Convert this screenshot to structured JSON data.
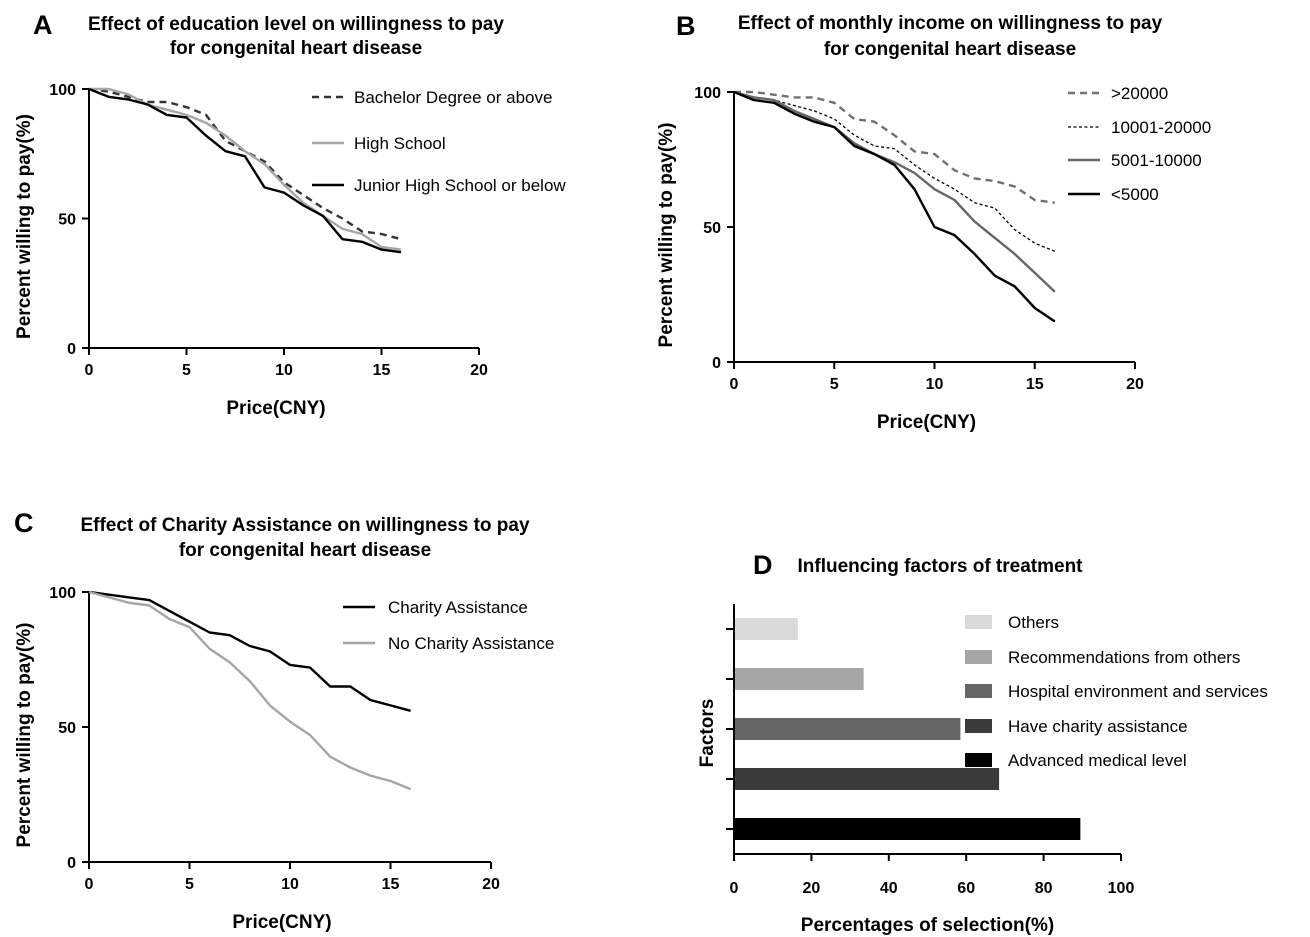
{
  "chart_data": [
    {
      "id": "A",
      "type": "line",
      "panel_letter": "A",
      "title": [
        "Effect of education level on willingness to pay",
        "for congenital heart disease"
      ],
      "xlabel": "Price(CNY)",
      "ylabel": "Percent willing to pay(%)",
      "xlim": [
        0,
        20
      ],
      "ylim": [
        0,
        100
      ],
      "xticks": [
        0,
        5,
        10,
        15,
        20
      ],
      "yticks": [
        0,
        50,
        100
      ],
      "legend_position": "top-right",
      "series": [
        {
          "name": "Bachelor Degree or above",
          "color": "#333333",
          "dash": "dashed",
          "x": [
            0,
            1,
            2,
            3,
            4,
            5,
            6,
            7,
            8,
            9,
            10,
            11,
            12,
            13,
            14,
            15,
            16
          ],
          "y": [
            100,
            99,
            97,
            95,
            95,
            93,
            90,
            80,
            76,
            72,
            64,
            59,
            54,
            50,
            45,
            44,
            42
          ]
        },
        {
          "name": "High School",
          "color": "#a6a6a6",
          "dash": "solid",
          "x": [
            0,
            1,
            2,
            3,
            4,
            5,
            6,
            7,
            8,
            9,
            10,
            11,
            12,
            13,
            14,
            15,
            16
          ],
          "y": [
            100,
            100,
            98,
            94,
            92,
            90,
            87,
            82,
            76,
            71,
            63,
            56,
            51,
            46,
            44,
            39,
            38
          ]
        },
        {
          "name": "Junior High School or below",
          "color": "#000000",
          "dash": "solid",
          "x": [
            0,
            1,
            2,
            3,
            4,
            5,
            6,
            7,
            8,
            9,
            10,
            11,
            12,
            13,
            14,
            15,
            16
          ],
          "y": [
            100,
            97,
            96,
            94,
            90,
            89,
            82,
            76,
            74,
            62,
            60,
            55,
            51,
            42,
            41,
            38,
            37
          ]
        }
      ]
    },
    {
      "id": "B",
      "type": "line",
      "panel_letter": "B",
      "title": [
        "Effect of monthly income on willingness to pay",
        "for congenital heart disease"
      ],
      "xlabel": "Price(CNY)",
      "ylabel": "Percent willing to pay(%)",
      "xlim": [
        0,
        20
      ],
      "ylim": [
        0,
        100
      ],
      "xticks": [
        0,
        5,
        10,
        15,
        20
      ],
      "yticks": [
        0,
        50,
        100
      ],
      "legend_position": "top-right",
      "series": [
        {
          "name": ">20000",
          "color": "#707070",
          "dash": "dashed",
          "x": [
            0,
            1,
            2,
            3,
            4,
            5,
            6,
            7,
            8,
            9,
            10,
            11,
            12,
            13,
            14,
            15,
            16
          ],
          "y": [
            100,
            100,
            99,
            98,
            98,
            96,
            90,
            89,
            84,
            78,
            77,
            71,
            68,
            67,
            65,
            60,
            59
          ]
        },
        {
          "name": "10001-20000",
          "color": "#000000",
          "dash": "dotted",
          "x": [
            0,
            1,
            2,
            3,
            4,
            5,
            6,
            7,
            8,
            9,
            10,
            11,
            12,
            13,
            14,
            15,
            16
          ],
          "y": [
            100,
            98,
            97,
            95,
            93,
            90,
            84,
            80,
            79,
            73,
            68,
            64,
            59,
            57,
            49,
            44,
            41
          ]
        },
        {
          "name": "5001-10000",
          "color": "#666666",
          "dash": "solid",
          "x": [
            0,
            1,
            2,
            3,
            4,
            5,
            6,
            7,
            8,
            9,
            10,
            11,
            12,
            13,
            14,
            15,
            16
          ],
          "y": [
            100,
            98,
            97,
            93,
            90,
            87,
            81,
            77,
            74,
            70,
            64,
            60,
            52,
            46,
            40,
            33,
            26
          ]
        },
        {
          "name": "<5000",
          "color": "#000000",
          "dash": "solid",
          "x": [
            0,
            1,
            2,
            3,
            4,
            5,
            6,
            7,
            8,
            9,
            10,
            11,
            12,
            13,
            14,
            15,
            16
          ],
          "y": [
            100,
            97,
            96,
            92,
            89,
            87,
            80,
            77,
            73,
            64,
            50,
            47,
            40,
            32,
            28,
            20,
            15
          ]
        }
      ]
    },
    {
      "id": "C",
      "type": "line",
      "panel_letter": "C",
      "title": [
        "Effect of Charity Assistance on willingness to pay",
        "for congenital heart disease"
      ],
      "xlabel": "Price(CNY)",
      "ylabel": "Percent willing to pay(%)",
      "xlim": [
        0,
        20
      ],
      "ylim": [
        0,
        100
      ],
      "xticks": [
        0,
        5,
        10,
        15,
        20
      ],
      "yticks": [
        0,
        50,
        100
      ],
      "legend_position": "top-right",
      "series": [
        {
          "name": "Charity Assistance",
          "color": "#000000",
          "dash": "solid",
          "x": [
            0,
            1,
            2,
            3,
            4,
            5,
            6,
            7,
            8,
            9,
            10,
            11,
            12,
            13,
            14,
            15,
            16
          ],
          "y": [
            100,
            99,
            98,
            97,
            93,
            89,
            85,
            84,
            80,
            78,
            73,
            72,
            65,
            65,
            60,
            58,
            56
          ]
        },
        {
          "name": "No Charity Assistance",
          "color": "#a6a6a6",
          "dash": "solid",
          "x": [
            0,
            1,
            2,
            3,
            4,
            5,
            6,
            7,
            8,
            9,
            10,
            11,
            12,
            13,
            14,
            15,
            16
          ],
          "y": [
            100,
            98,
            96,
            95,
            90,
            87,
            79,
            74,
            67,
            58,
            52,
            47,
            39,
            35,
            32,
            30,
            27
          ]
        }
      ]
    },
    {
      "id": "D",
      "type": "bar",
      "orientation": "horizontal",
      "panel_letter": "D",
      "title": [
        "Influencing factors of treatment"
      ],
      "xlabel": "Percentages of selection(%)",
      "ylabel": "Factors",
      "xlim": [
        0,
        100
      ],
      "xticks": [
        0,
        20,
        40,
        60,
        80,
        100
      ],
      "legend_position": "top-right",
      "categories": [
        "Others",
        "Recommendations from others",
        "Hospital environment and services",
        "Have charity assistance",
        "Advanced medical level"
      ],
      "values": [
        16.5,
        33.5,
        58.5,
        68.5,
        89.5
      ],
      "colors": [
        "#d9d9d9",
        "#a6a6a6",
        "#666666",
        "#3a3a3a",
        "#000000"
      ]
    }
  ]
}
